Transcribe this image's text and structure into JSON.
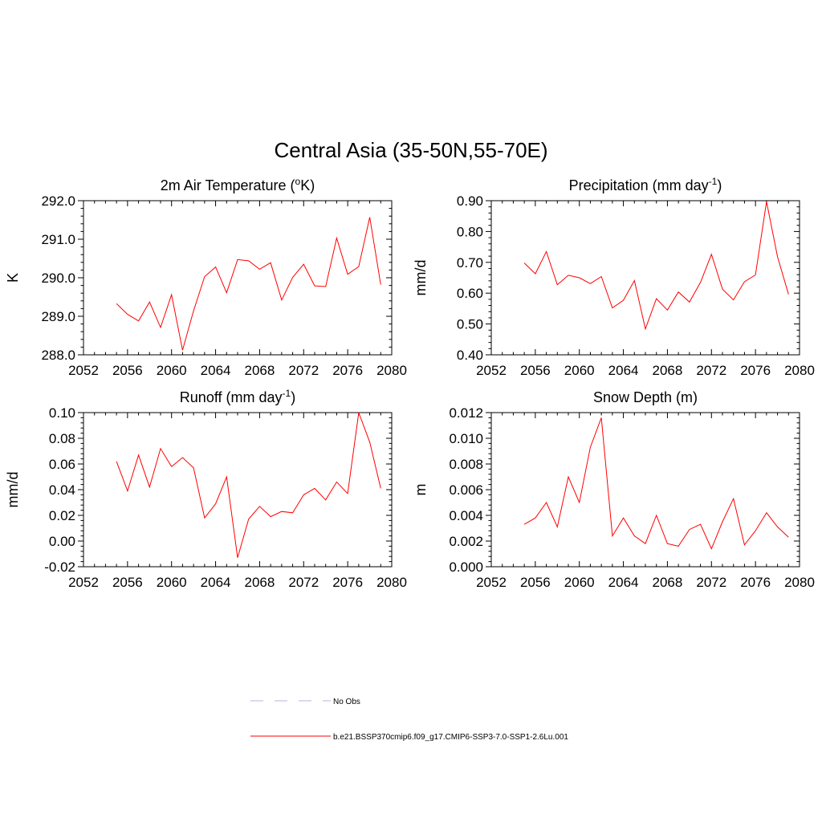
{
  "title": "Central Asia (35-50N,55-70E)",
  "legend": {
    "items": [
      {
        "label": "No Obs",
        "color": "#b3b3e6",
        "dashed": true
      },
      {
        "label": "b.e21.BSSP370cmip6.f09_g17.CMIP6-SSP3-7.0-SSP1-2.6Lu.001",
        "color": "#ff0000",
        "dashed": false
      }
    ]
  },
  "chart_data": [
    {
      "type": "line",
      "title": "2m Air Temperature (",
      "title_sup": "o",
      "title_after": "K)",
      "xlabel": "",
      "ylabel": "K",
      "xlim": [
        2052,
        2080
      ],
      "ylim": [
        288.0,
        292.0
      ],
      "xticks": [
        2052,
        2056,
        2060,
        2064,
        2068,
        2072,
        2076,
        2080
      ],
      "yticks": [
        "288.0",
        "289.0",
        "290.0",
        "291.0",
        "292.0"
      ],
      "grid": false,
      "x": [
        2055,
        2056,
        2057,
        2058,
        2059,
        2060,
        2061,
        2062,
        2063,
        2064,
        2065,
        2066,
        2067,
        2068,
        2069,
        2070,
        2071,
        2072,
        2073,
        2074,
        2075,
        2076,
        2077,
        2078,
        2079
      ],
      "series": [
        {
          "color": "#ff0000",
          "values": [
            289.33,
            289.05,
            288.88,
            289.37,
            288.71,
            289.56,
            288.12,
            289.14,
            290.03,
            290.28,
            289.61,
            290.47,
            290.44,
            290.22,
            290.39,
            289.42,
            290.01,
            290.35,
            289.79,
            289.77,
            291.03,
            290.09,
            290.29,
            291.57,
            289.82
          ]
        }
      ]
    },
    {
      "type": "line",
      "title": "Precipitation (mm day",
      "title_sup": "-1",
      "title_after": ")",
      "xlabel": "",
      "ylabel": "mm/d",
      "xlim": [
        2052,
        2080
      ],
      "ylim": [
        0.4,
        0.9
      ],
      "xticks": [
        2052,
        2056,
        2060,
        2064,
        2068,
        2072,
        2076,
        2080
      ],
      "yticks": [
        "0.40",
        "0.50",
        "0.60",
        "0.70",
        "0.80",
        "0.90"
      ],
      "grid": false,
      "x": [
        2055,
        2056,
        2057,
        2058,
        2059,
        2060,
        2061,
        2062,
        2063,
        2064,
        2065,
        2066,
        2067,
        2068,
        2069,
        2070,
        2071,
        2072,
        2073,
        2074,
        2075,
        2076,
        2077,
        2078,
        2079
      ],
      "series": [
        {
          "color": "#ff0000",
          "values": [
            0.698,
            0.663,
            0.735,
            0.627,
            0.658,
            0.65,
            0.631,
            0.654,
            0.552,
            0.577,
            0.641,
            0.484,
            0.582,
            0.545,
            0.604,
            0.571,
            0.635,
            0.726,
            0.613,
            0.578,
            0.637,
            0.659,
            0.897,
            0.718,
            0.596
          ]
        }
      ]
    },
    {
      "type": "line",
      "title": "Runoff (mm day",
      "title_sup": "-1",
      "title_after": ")",
      "xlabel": "",
      "ylabel": "mm/d",
      "xlim": [
        2052,
        2080
      ],
      "ylim": [
        -0.02,
        0.1
      ],
      "xticks": [
        2052,
        2056,
        2060,
        2064,
        2068,
        2072,
        2076,
        2080
      ],
      "yticks": [
        "-0.02",
        "0.00",
        "0.02",
        "0.04",
        "0.06",
        "0.08",
        "0.10"
      ],
      "grid": false,
      "x": [
        2055,
        2056,
        2057,
        2058,
        2059,
        2060,
        2061,
        2062,
        2063,
        2064,
        2065,
        2066,
        2067,
        2068,
        2069,
        2070,
        2071,
        2072,
        2073,
        2074,
        2075,
        2076,
        2077,
        2078,
        2079
      ],
      "series": [
        {
          "color": "#ff0000",
          "values": [
            0.062,
            0.039,
            0.067,
            0.042,
            0.072,
            0.058,
            0.065,
            0.057,
            0.018,
            0.029,
            0.05,
            -0.013,
            0.017,
            0.027,
            0.019,
            0.023,
            0.022,
            0.036,
            0.041,
            0.032,
            0.046,
            0.037,
            0.1,
            0.077,
            0.041
          ]
        }
      ]
    },
    {
      "type": "line",
      "title": "Snow Depth (m)",
      "title_sup": "",
      "title_after": "",
      "xlabel": "",
      "ylabel": "m",
      "xlim": [
        2052,
        2080
      ],
      "ylim": [
        0.0,
        0.012
      ],
      "xticks": [
        2052,
        2056,
        2060,
        2064,
        2068,
        2072,
        2076,
        2080
      ],
      "yticks": [
        "0.000",
        "0.002",
        "0.004",
        "0.006",
        "0.008",
        "0.010",
        "0.012"
      ],
      "grid": false,
      "x": [
        2055,
        2056,
        2057,
        2058,
        2059,
        2060,
        2061,
        2062,
        2063,
        2064,
        2065,
        2066,
        2067,
        2068,
        2069,
        2070,
        2071,
        2072,
        2073,
        2074,
        2075,
        2076,
        2077,
        2078,
        2079
      ],
      "series": [
        {
          "color": "#ff0000",
          "values": [
            0.0033,
            0.0038,
            0.005,
            0.0031,
            0.007,
            0.005,
            0.0093,
            0.0116,
            0.0024,
            0.0038,
            0.0024,
            0.0018,
            0.004,
            0.0018,
            0.0016,
            0.0029,
            0.0033,
            0.0014,
            0.0035,
            0.0053,
            0.0017,
            0.0028,
            0.0042,
            0.0031,
            0.0023
          ]
        }
      ]
    }
  ]
}
